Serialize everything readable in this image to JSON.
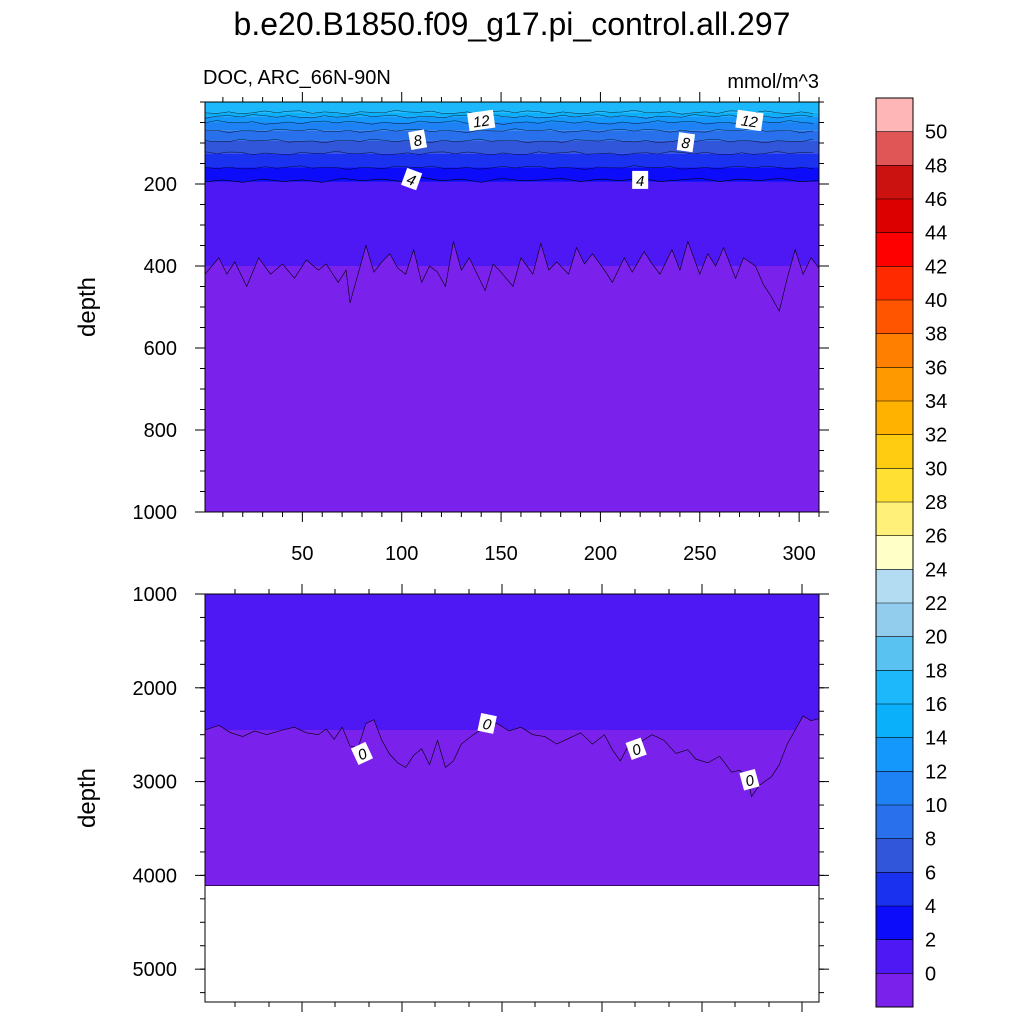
{
  "title": "b.e20.B1850.f09_g17.pi_control.all.297",
  "left_subtitle": "DOC, ARC_66N-90N",
  "right_subtitle": "mmol/m^3",
  "chart_data": [
    {
      "type": "heatmap",
      "panel": "upper",
      "xlabel": "",
      "ylabel": "depth",
      "xlim": [
        1,
        310
      ],
      "ylim": [
        1000,
        0
      ],
      "x_ticks": [
        50,
        100,
        150,
        200,
        250,
        300
      ],
      "y_ticks": [
        200,
        400,
        600,
        800,
        1000
      ],
      "contour_labels": [
        "12",
        "12",
        "8",
        "8",
        "4",
        "4"
      ],
      "fields": [
        {
          "level_range": [
            16,
            18
          ],
          "depth_top": 0,
          "depth_bottom": 25
        },
        {
          "level_range": [
            14,
            16
          ],
          "depth_top": 25,
          "depth_bottom": 35
        },
        {
          "level_range": [
            12,
            14
          ],
          "depth_top": 35,
          "depth_bottom": 50
        },
        {
          "level_range": [
            10,
            12
          ],
          "depth_top": 50,
          "depth_bottom": 70
        },
        {
          "level_range": [
            8,
            10
          ],
          "depth_top": 70,
          "depth_bottom": 95
        },
        {
          "level_range": [
            6,
            8
          ],
          "depth_top": 95,
          "depth_bottom": 125
        },
        {
          "level_range": [
            4,
            6
          ],
          "depth_top": 125,
          "depth_bottom": 160
        },
        {
          "level_range": [
            2,
            4
          ],
          "depth_top": 160,
          "depth_bottom": 195
        },
        {
          "level_range": [
            0,
            2
          ],
          "depth_top": 195,
          "depth_bottom": 400
        },
        {
          "level_range": [
            -2,
            0
          ],
          "depth_top": 400,
          "depth_bottom": 1000
        }
      ],
      "contour_4_depth": [
        [
          1,
          195
        ],
        [
          10,
          190
        ],
        [
          20,
          196
        ],
        [
          30,
          188
        ],
        [
          40,
          194
        ],
        [
          50,
          190
        ],
        [
          60,
          196
        ],
        [
          70,
          186
        ],
        [
          80,
          192
        ],
        [
          90,
          188
        ],
        [
          100,
          194
        ],
        [
          110,
          184
        ],
        [
          120,
          192
        ],
        [
          130,
          188
        ],
        [
          140,
          196
        ],
        [
          150,
          186
        ],
        [
          160,
          192
        ],
        [
          170,
          190
        ],
        [
          180,
          186
        ],
        [
          190,
          194
        ],
        [
          200,
          188
        ],
        [
          210,
          192
        ],
        [
          220,
          186
        ],
        [
          230,
          194
        ],
        [
          240,
          190
        ],
        [
          250,
          186
        ],
        [
          260,
          194
        ],
        [
          270,
          188
        ],
        [
          280,
          192
        ],
        [
          290,
          186
        ],
        [
          300,
          194
        ],
        [
          310,
          192
        ]
      ],
      "contour_0_depth": [
        [
          1,
          420
        ],
        [
          8,
          380
        ],
        [
          12,
          420
        ],
        [
          16,
          390
        ],
        [
          22,
          450
        ],
        [
          28,
          380
        ],
        [
          34,
          420
        ],
        [
          40,
          395
        ],
        [
          46,
          430
        ],
        [
          52,
          385
        ],
        [
          58,
          410
        ],
        [
          62,
          395
        ],
        [
          68,
          440
        ],
        [
          72,
          410
        ],
        [
          74,
          490
        ],
        [
          78,
          420
        ],
        [
          82,
          350
        ],
        [
          86,
          415
        ],
        [
          90,
          390
        ],
        [
          94,
          370
        ],
        [
          98,
          405
        ],
        [
          102,
          420
        ],
        [
          106,
          360
        ],
        [
          110,
          440
        ],
        [
          114,
          400
        ],
        [
          118,
          415
        ],
        [
          122,
          450
        ],
        [
          126,
          340
        ],
        [
          130,
          410
        ],
        [
          134,
          380
        ],
        [
          138,
          420
        ],
        [
          142,
          460
        ],
        [
          146,
          395
        ],
        [
          150,
          415
        ],
        [
          156,
          450
        ],
        [
          160,
          380
        ],
        [
          166,
          420
        ],
        [
          170,
          345
        ],
        [
          174,
          410
        ],
        [
          178,
          390
        ],
        [
          184,
          420
        ],
        [
          188,
          355
        ],
        [
          192,
          395
        ],
        [
          196,
          370
        ],
        [
          202,
          410
        ],
        [
          206,
          440
        ],
        [
          212,
          380
        ],
        [
          216,
          415
        ],
        [
          222,
          365
        ],
        [
          226,
          395
        ],
        [
          230,
          420
        ],
        [
          236,
          360
        ],
        [
          240,
          410
        ],
        [
          244,
          340
        ],
        [
          250,
          420
        ],
        [
          254,
          370
        ],
        [
          258,
          400
        ],
        [
          262,
          355
        ],
        [
          268,
          430
        ],
        [
          272,
          380
        ],
        [
          278,
          400
        ],
        [
          282,
          445
        ],
        [
          286,
          475
        ],
        [
          290,
          510
        ],
        [
          294,
          430
        ],
        [
          298,
          360
        ],
        [
          302,
          420
        ],
        [
          306,
          380
        ],
        [
          310,
          405
        ]
      ]
    },
    {
      "type": "heatmap",
      "panel": "lower",
      "xlabel": "",
      "ylabel": "depth",
      "xlim": [
        1,
        310
      ],
      "ylim": [
        5350,
        1000
      ],
      "y_ticks": [
        1000,
        2000,
        3000,
        4000,
        5000
      ],
      "contour_labels": [
        "0",
        "0",
        "0",
        "0"
      ],
      "fields": [
        {
          "level_range": [
            0,
            2
          ],
          "depth_top": 1000,
          "depth_bottom": 2450
        },
        {
          "level_range": [
            -2,
            0
          ],
          "depth_top": 2450,
          "depth_bottom": 4110
        },
        {
          "level_range": "missing",
          "depth_top": 4110,
          "depth_bottom": 5350
        }
      ],
      "contour_0_depth": [
        [
          1,
          2450
        ],
        [
          8,
          2400
        ],
        [
          14,
          2480
        ],
        [
          20,
          2520
        ],
        [
          26,
          2460
        ],
        [
          32,
          2500
        ],
        [
          40,
          2450
        ],
        [
          46,
          2420
        ],
        [
          52,
          2480
        ],
        [
          58,
          2500
        ],
        [
          62,
          2440
        ],
        [
          66,
          2550
        ],
        [
          70,
          2420
        ],
        [
          74,
          2620
        ],
        [
          78,
          2640
        ],
        [
          82,
          2380
        ],
        [
          86,
          2340
        ],
        [
          90,
          2560
        ],
        [
          94,
          2710
        ],
        [
          98,
          2800
        ],
        [
          102,
          2850
        ],
        [
          106,
          2720
        ],
        [
          110,
          2650
        ],
        [
          114,
          2820
        ],
        [
          118,
          2560
        ],
        [
          122,
          2850
        ],
        [
          126,
          2780
        ],
        [
          130,
          2600
        ],
        [
          136,
          2500
        ],
        [
          142,
          2420
        ],
        [
          148,
          2380
        ],
        [
          154,
          2460
        ],
        [
          160,
          2420
        ],
        [
          166,
          2500
        ],
        [
          172,
          2520
        ],
        [
          178,
          2600
        ],
        [
          184,
          2540
        ],
        [
          190,
          2480
        ],
        [
          196,
          2600
        ],
        [
          202,
          2500
        ],
        [
          206,
          2660
        ],
        [
          210,
          2780
        ],
        [
          214,
          2620
        ],
        [
          220,
          2580
        ],
        [
          226,
          2500
        ],
        [
          232,
          2560
        ],
        [
          238,
          2700
        ],
        [
          244,
          2660
        ],
        [
          248,
          2760
        ],
        [
          254,
          2800
        ],
        [
          260,
          2730
        ],
        [
          266,
          2900
        ],
        [
          270,
          2880
        ],
        [
          274,
          2940
        ],
        [
          276,
          3160
        ],
        [
          280,
          3040
        ],
        [
          286,
          2950
        ],
        [
          290,
          2820
        ],
        [
          294,
          2600
        ],
        [
          298,
          2450
        ],
        [
          302,
          2300
        ],
        [
          306,
          2350
        ],
        [
          310,
          2330
        ]
      ]
    }
  ],
  "colorbar": {
    "labels": [
      "50",
      "48",
      "46",
      "44",
      "42",
      "40",
      "38",
      "36",
      "34",
      "32",
      "30",
      "28",
      "26",
      "24",
      "22",
      "20",
      "18",
      "16",
      "14",
      "12",
      "10",
      "8",
      "6",
      "4",
      "2",
      "0"
    ],
    "colors": [
      "#ffb6b6",
      "#e05555",
      "#cc1111",
      "#dd0000",
      "#ff0000",
      "#ff2a00",
      "#ff5500",
      "#ff7f00",
      "#ff9900",
      "#ffb200",
      "#ffcc11",
      "#ffe033",
      "#fff07a",
      "#ffffc8",
      "#b3dcf2",
      "#93cdee",
      "#59c2f0",
      "#1cb8fb",
      "#0bb0fb",
      "#1598fb",
      "#1e82f4",
      "#2870ec",
      "#3256da",
      "#1a32f0",
      "#0c0cfb",
      "#4e18f5",
      "#7a22eb"
    ]
  }
}
